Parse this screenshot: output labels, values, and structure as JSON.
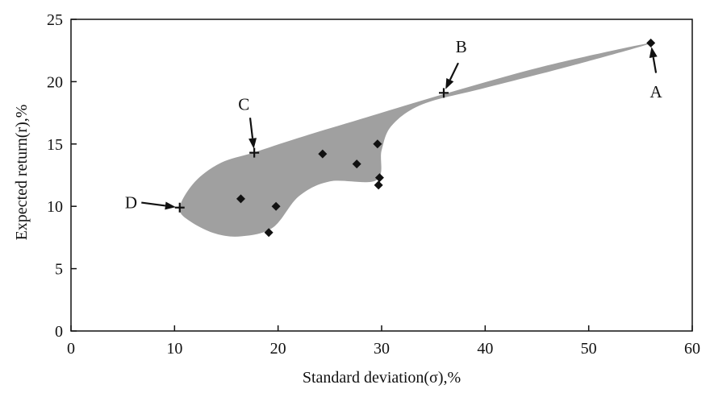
{
  "chart_data": {
    "type": "scatter",
    "title": "",
    "xlabel": "Standard deviation(σ),%",
    "ylabel": "Expected return(r),%",
    "xlim": [
      0,
      60
    ],
    "ylim": [
      0,
      25
    ],
    "xticks": [
      0,
      10,
      20,
      30,
      40,
      50,
      60
    ],
    "yticks": [
      0,
      5,
      10,
      15,
      20,
      25
    ],
    "grid": false,
    "fill_color": "#a0a0a0",
    "marker_color": "#111111",
    "region_boundary": [
      [
        10.5,
        9.9
      ],
      [
        12,
        12
      ],
      [
        14.5,
        13.5
      ],
      [
        17.6,
        14.3
      ],
      [
        22,
        15.5
      ],
      [
        28,
        17
      ],
      [
        36,
        19
      ],
      [
        46,
        21.3
      ],
      [
        56,
        23.1
      ],
      [
        48,
        21.2
      ],
      [
        40,
        19.5
      ],
      [
        34,
        18.2
      ],
      [
        31,
        16.5
      ],
      [
        30,
        14.5
      ],
      [
        29.5,
        12.1
      ],
      [
        25,
        12
      ],
      [
        22,
        10.8
      ],
      [
        19.5,
        8.3
      ],
      [
        16.5,
        7.6
      ],
      [
        14,
        7.8
      ],
      [
        11.5,
        8.8
      ]
    ],
    "diamond_points": [
      {
        "x": 56.0,
        "y": 23.1
      },
      {
        "x": 24.3,
        "y": 14.2
      },
      {
        "x": 29.6,
        "y": 15.0
      },
      {
        "x": 27.6,
        "y": 13.4
      },
      {
        "x": 29.8,
        "y": 12.3
      },
      {
        "x": 29.7,
        "y": 11.7
      },
      {
        "x": 16.4,
        "y": 10.6
      },
      {
        "x": 19.8,
        "y": 10.0
      },
      {
        "x": 19.1,
        "y": 7.9
      }
    ],
    "cross_points": [
      {
        "x": 10.5,
        "y": 9.9
      },
      {
        "x": 17.7,
        "y": 14.3
      },
      {
        "x": 36.0,
        "y": 19.1
      }
    ],
    "annotations": [
      {
        "label": "A",
        "x": 56.0,
        "y": 23.1,
        "text_x": 56.5,
        "text_y": 19.2,
        "tail_x": 56.5,
        "tail_y": 20.7
      },
      {
        "label": "B",
        "x": 36.0,
        "y": 19.1,
        "text_x": 37.7,
        "text_y": 22.8,
        "tail_x": 37.4,
        "tail_y": 21.5
      },
      {
        "label": "C",
        "x": 17.7,
        "y": 14.3,
        "text_x": 16.7,
        "text_y": 18.2,
        "tail_x": 17.3,
        "tail_y": 17.1
      },
      {
        "label": "D",
        "x": 10.5,
        "y": 9.9,
        "text_x": 5.8,
        "text_y": 10.3,
        "tail_x": 6.8,
        "tail_y": 10.3
      }
    ]
  }
}
